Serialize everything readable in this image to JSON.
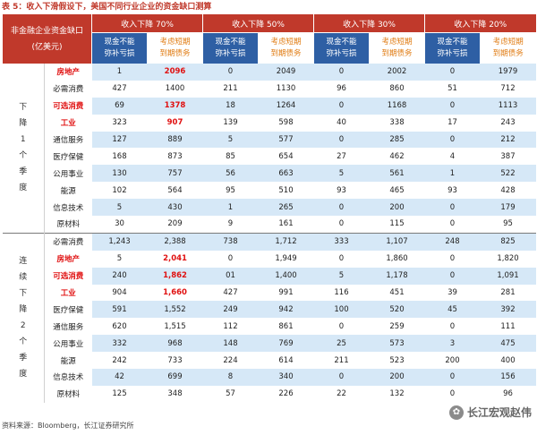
{
  "caption": "表 5：收入下滑假设下，美国不同行业企业的资金缺口测算",
  "corner": {
    "line1": "非金融企业资金缺口",
    "line2": "(亿美元)"
  },
  "scenarios": [
    "收入下降 70%",
    "收入下降 50%",
    "收入下降 30%",
    "收入下降 20%"
  ],
  "subheaders": {
    "a": "现金不能\n弥补亏损",
    "b": "考虑短期\n到期债务"
  },
  "groups": [
    {
      "label": [
        "下",
        "降",
        "1",
        "个",
        "季",
        "度"
      ],
      "rows": [
        {
          "industry": "房地产",
          "red": true,
          "vals": [
            "1",
            "2096",
            "0",
            "2049",
            "0",
            "2002",
            "0",
            "1979"
          ]
        },
        {
          "industry": "必需消费",
          "red": false,
          "vals": [
            "427",
            "1400",
            "211",
            "1130",
            "96",
            "860",
            "51",
            "712"
          ]
        },
        {
          "industry": "可选消费",
          "red": true,
          "vals": [
            "69",
            "1378",
            "18",
            "1264",
            "0",
            "1168",
            "0",
            "1113"
          ]
        },
        {
          "industry": "工业",
          "red": true,
          "vals": [
            "323",
            "907",
            "139",
            "598",
            "40",
            "338",
            "17",
            "243"
          ]
        },
        {
          "industry": "通信服务",
          "red": false,
          "vals": [
            "127",
            "889",
            "5",
            "577",
            "0",
            "285",
            "0",
            "212"
          ]
        },
        {
          "industry": "医疗保健",
          "red": false,
          "vals": [
            "168",
            "873",
            "85",
            "654",
            "27",
            "462",
            "4",
            "387"
          ]
        },
        {
          "industry": "公用事业",
          "red": false,
          "vals": [
            "130",
            "757",
            "56",
            "663",
            "5",
            "561",
            "1",
            "522"
          ]
        },
        {
          "industry": "能源",
          "red": false,
          "vals": [
            "102",
            "564",
            "95",
            "510",
            "93",
            "465",
            "93",
            "428"
          ]
        },
        {
          "industry": "信息技术",
          "red": false,
          "vals": [
            "5",
            "430",
            "1",
            "265",
            "0",
            "200",
            "0",
            "179"
          ]
        },
        {
          "industry": "原材料",
          "red": false,
          "vals": [
            "30",
            "209",
            "9",
            "161",
            "0",
            "115",
            "0",
            "95"
          ]
        }
      ]
    },
    {
      "label": [
        "连",
        "续",
        "下",
        "降",
        "2",
        "个",
        "季",
        "度"
      ],
      "rows": [
        {
          "industry": "必需消费",
          "red": false,
          "vals": [
            "1,243",
            "2,388",
            "738",
            "1,712",
            "333",
            "1,107",
            "248",
            "825"
          ]
        },
        {
          "industry": "房地产",
          "red": true,
          "vals": [
            "5",
            "2,041",
            "0",
            "1,949",
            "0",
            "1,860",
            "0",
            "1,820"
          ]
        },
        {
          "industry": "可选消费",
          "red": true,
          "vals": [
            "240",
            "1,862",
            "01",
            "1,400",
            "5",
            "1,178",
            "0",
            "1,091"
          ]
        },
        {
          "industry": "工业",
          "red": true,
          "vals": [
            "904",
            "1,660",
            "427",
            "991",
            "116",
            "451",
            "39",
            "281"
          ]
        },
        {
          "industry": "医疗保健",
          "red": false,
          "vals": [
            "591",
            "1,552",
            "249",
            "942",
            "100",
            "520",
            "45",
            "392"
          ]
        },
        {
          "industry": "通信服务",
          "red": false,
          "vals": [
            "620",
            "1,515",
            "112",
            "861",
            "0",
            "259",
            "0",
            "111"
          ]
        },
        {
          "industry": "公用事业",
          "red": false,
          "vals": [
            "332",
            "968",
            "148",
            "769",
            "25",
            "573",
            "3",
            "475"
          ]
        },
        {
          "industry": "能源",
          "red": false,
          "vals": [
            "242",
            "733",
            "224",
            "614",
            "211",
            "523",
            "200",
            "400"
          ]
        },
        {
          "industry": "信息技术",
          "red": false,
          "vals": [
            "42",
            "699",
            "8",
            "340",
            "0",
            "200",
            "0",
            "156"
          ]
        },
        {
          "industry": "原材料",
          "red": false,
          "vals": [
            "125",
            "348",
            "57",
            "226",
            "22",
            "132",
            "0",
            "96"
          ]
        }
      ]
    }
  ],
  "footer": "资料来源：Bloomberg，长江证券研究所",
  "watermark": "长江宏观赵伟"
}
